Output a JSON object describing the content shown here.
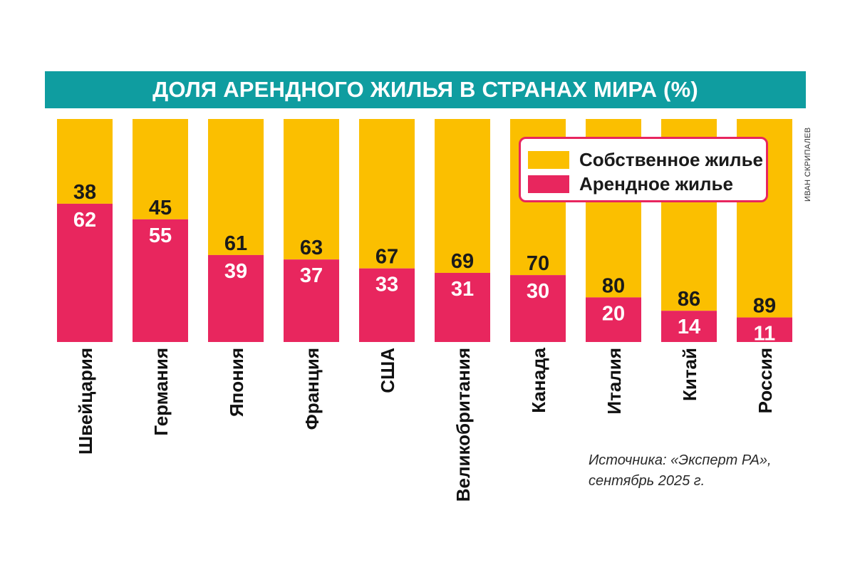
{
  "title": "ДОЛЯ АРЕНДНОГО ЖИЛЬЯ В СТРАНАХ МИРА (%)",
  "credit": "ИВАН СКРИПАЛЕВ",
  "source": {
    "line1": "Источника: «Эксперт РА»,",
    "line2": "сентябрь 2025 г."
  },
  "colors": {
    "title_bg": "#0f9da0",
    "owned": "#fbbf00",
    "rented": "#e8265e",
    "owned_text": "#1a1a1a",
    "rented_text": "#ffffff"
  },
  "chart_data": {
    "type": "bar",
    "stacked": true,
    "categories": [
      "Швейцария",
      "Германия",
      "Япония",
      "Франция",
      "США",
      "Великобритания",
      "Канада",
      "Италия",
      "Китай",
      "Россия"
    ],
    "series": [
      {
        "name": "Арендное жилье",
        "values": [
          62,
          55,
          39,
          37,
          33,
          31,
          30,
          20,
          14,
          11
        ]
      },
      {
        "name": "Собственное жилье",
        "values": [
          38,
          45,
          61,
          63,
          67,
          69,
          70,
          80,
          86,
          89
        ]
      }
    ],
    "ylim": [
      0,
      100
    ],
    "legend_position": "top-right",
    "grid": false
  }
}
